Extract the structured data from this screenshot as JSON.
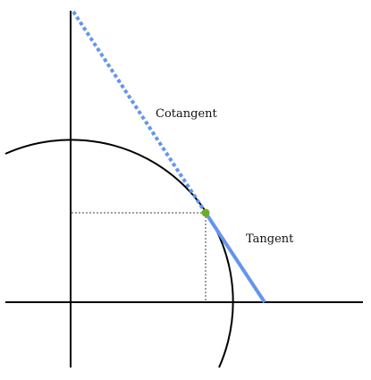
{
  "diagram": {
    "labels": {
      "cotangent": "Cotangent",
      "tangent": "Tangent"
    },
    "colors": {
      "axis": "#000000",
      "circle": "#000000",
      "tangent_line": "#6495ED",
      "cotangent_line": "#6495ED",
      "guide_lines": "#808080",
      "point": "#6AAE24"
    }
  }
}
